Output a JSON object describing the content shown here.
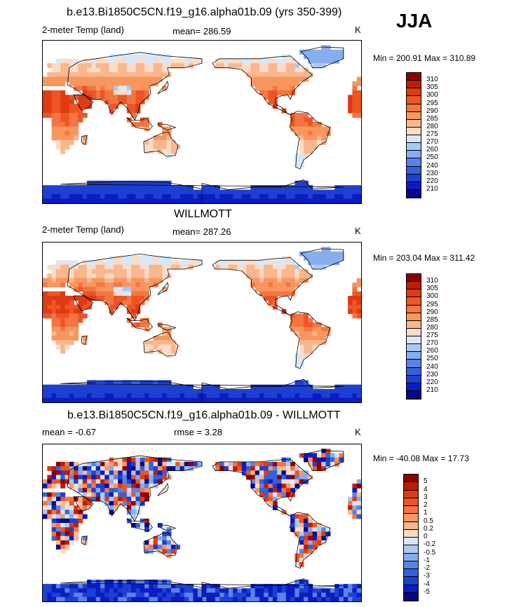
{
  "season": "JJA",
  "panels": [
    {
      "title": "b.e13.Bi1850C5CN.f19_g16.alpha01b.09 (yrs 350-399)",
      "left_label": "2-meter Temp (land)",
      "center_label": "mean= 286.59",
      "units": "K",
      "minmax": "Min = 200.91 Max = 310.89"
    },
    {
      "title": "WILLMOTT",
      "left_label": "2-meter Temp (land)",
      "center_label": "mean= 287.26",
      "units": "K",
      "minmax": "Min = 203.04 Max = 311.42"
    },
    {
      "title": "b.e13.Bi1850C5CN.f19_g16.alpha01b.09 - WILLMOTT",
      "left_label": "mean =  -0.67",
      "center_label": "rmse =    3.28",
      "units": "K",
      "minmax": "Min = -40.08 Max =  17.73"
    }
  ],
  "chart_data": [
    {
      "type": "heatmap",
      "title": "b.e13.Bi1850C5CN.f19_g16.alpha01b.09 (yrs 350-399)",
      "variable": "2-meter Temp (land)",
      "mean": 286.59,
      "min": 200.91,
      "max": 310.89,
      "units": "K",
      "levels": [
        "310",
        "305",
        "300",
        "295",
        "290",
        "285",
        "280",
        "275",
        "270",
        "260",
        "250",
        "240",
        "230",
        "220",
        "210"
      ],
      "colors": [
        "#8c0000",
        "#be1e00",
        "#df3a12",
        "#ec5526",
        "#f37642",
        "#f7975f",
        "#f9b78e",
        "#fcdcc7",
        "#d6e8fb",
        "#abc9f3",
        "#86aded",
        "#5a84e4",
        "#3462da",
        "#1d40d2",
        "#0a1cc2",
        "#000a8c"
      ]
    },
    {
      "type": "heatmap",
      "title": "WILLMOTT",
      "variable": "2-meter Temp (land)",
      "mean": 287.26,
      "min": 203.04,
      "max": 311.42,
      "units": "K",
      "levels": [
        "310",
        "305",
        "300",
        "295",
        "290",
        "285",
        "280",
        "275",
        "270",
        "260",
        "250",
        "240",
        "230",
        "220",
        "210"
      ],
      "colors": [
        "#8c0000",
        "#be1e00",
        "#df3a12",
        "#ec5526",
        "#f37642",
        "#f7975f",
        "#f9b78e",
        "#fcdcc7",
        "#d6e8fb",
        "#abc9f3",
        "#86aded",
        "#5a84e4",
        "#3462da",
        "#1d40d2",
        "#0a1cc2",
        "#000a8c"
      ]
    },
    {
      "type": "heatmap",
      "title": "b.e13.Bi1850C5CN.f19_g16.alpha01b.09 - WILLMOTT",
      "variable": "difference",
      "mean": -0.67,
      "rmse": 3.28,
      "min": -40.08,
      "max": 17.73,
      "units": "K",
      "levels": [
        "5",
        "4",
        "3",
        "2",
        "1",
        "0.5",
        "0.2",
        "0",
        "-0.2",
        "-0.5",
        "-1",
        "-2",
        "-3",
        "-4",
        "-5"
      ],
      "colors": [
        "#8c0000",
        "#be1e00",
        "#df3a12",
        "#ec5526",
        "#f37642",
        "#f7975f",
        "#f9b78e",
        "#fcdcc7",
        "#d6e8fb",
        "#abc9f3",
        "#86aded",
        "#5a84e4",
        "#3462da",
        "#1d40d2",
        "#0a1cc2",
        "#000a8c"
      ]
    }
  ]
}
